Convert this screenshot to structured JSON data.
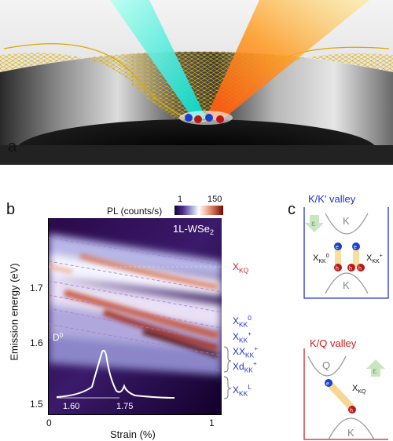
{
  "panels": {
    "a": {
      "letter": "a"
    },
    "b": {
      "letter": "b",
      "colorbar": {
        "label": "PL (counts/s)",
        "min": "1",
        "max": "150"
      },
      "sample_label": "1L-WSe",
      "sample_sub": "2",
      "ylabel": "Emission energy (eV)",
      "xlabel": "Strain (%)",
      "y_ticks": [
        "1.7",
        "1.6",
        "1.5"
      ],
      "x_ticks": [
        "0",
        "1"
      ],
      "inset": {
        "label": "D",
        "label_sup": "0",
        "ticks": [
          "1.60",
          "1.75"
        ]
      },
      "exciton_labels": [
        {
          "main": "X",
          "sub": "KQ",
          "sup": "",
          "color": "#cc2222"
        },
        {
          "main": "X",
          "sub": "KK",
          "sup": "0",
          "color": "#2233cc"
        },
        {
          "main": "X",
          "sub": "KK",
          "sup": "+",
          "color": "#2233cc"
        },
        {
          "main": "XX",
          "sub": "KK",
          "sup": "+",
          "color": "#2233cc"
        },
        {
          "main": "Xd",
          "sub": "KK",
          "sup": "+",
          "color": "#2233cc"
        },
        {
          "main": "X",
          "sub": "KK",
          "sup": "L",
          "color": "#2233cc"
        }
      ]
    },
    "c": {
      "letter": "c",
      "kk": {
        "title": "K/K' valley",
        "valley_top": "K",
        "valley_bottom": "K",
        "strain_symbol": "ε",
        "left": {
          "main": "X",
          "sub": "KK",
          "sup": "0"
        },
        "right": {
          "main": "X",
          "sub": "KK",
          "sup": "+"
        },
        "e": "e",
        "h": "h"
      },
      "kq": {
        "title": "K/Q valley",
        "valley_left": "Q",
        "valley_bottom": "K",
        "strain_symbol": "ε",
        "label": {
          "main": "X",
          "sub": "KQ",
          "sup": ""
        },
        "e": "e",
        "h": "h"
      }
    }
  },
  "colors": {
    "kk_box": "#2233cc",
    "kq_box": "#cc2222",
    "electron": "#1a3fcc",
    "hole": "#b81818"
  }
}
